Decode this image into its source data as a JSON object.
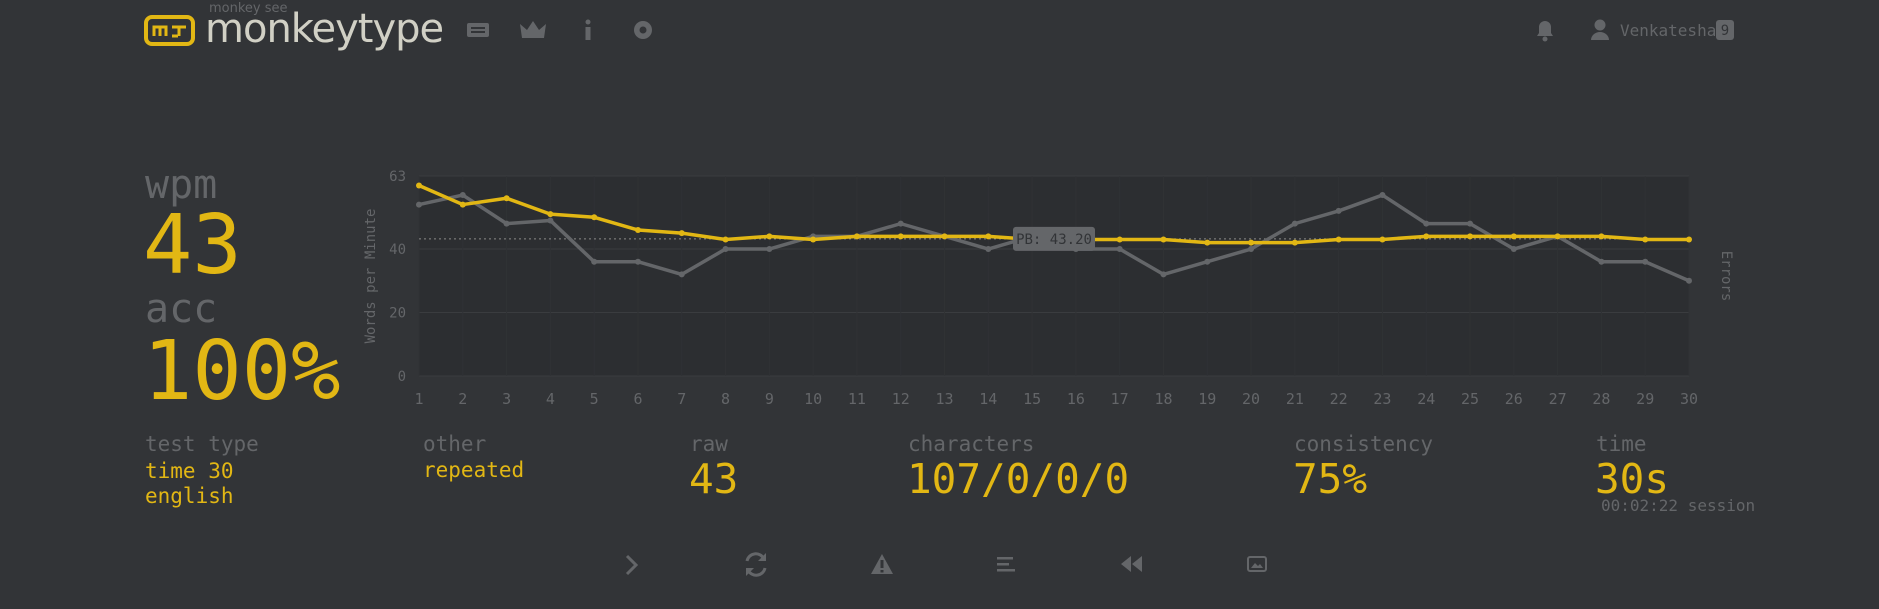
{
  "header": {
    "logo_subtitle": "monkey see",
    "logo_title": "monkeytype",
    "username": "Venkatesha",
    "badge": "9"
  },
  "stats": {
    "wpm": {
      "label": "wpm",
      "value": "43"
    },
    "acc": {
      "label": "acc",
      "value": "100%"
    },
    "test_type": {
      "label": "test type",
      "lines": [
        "time 30",
        "english"
      ]
    },
    "other": {
      "label": "other",
      "value": "repeated"
    },
    "raw": {
      "label": "raw",
      "value": "43"
    },
    "characters": {
      "label": "characters",
      "value": "107/0/0/0"
    },
    "consistency": {
      "label": "consistency",
      "value": "75%"
    },
    "time": {
      "label": "time",
      "value": "30s",
      "session": "00:02:22 session"
    }
  },
  "chart_data": {
    "type": "line",
    "y_label": "Words per Minute",
    "y2_label": "Errors",
    "x": [
      1,
      2,
      3,
      4,
      5,
      6,
      7,
      8,
      9,
      10,
      11,
      12,
      13,
      14,
      15,
      16,
      17,
      18,
      19,
      20,
      21,
      22,
      23,
      24,
      25,
      26,
      27,
      28,
      29,
      30
    ],
    "xlim": [
      1,
      30
    ],
    "ylim": [
      0,
      63
    ],
    "yticks": [
      0,
      20,
      40,
      63
    ],
    "grid": true,
    "annotation": {
      "value": 43.2,
      "label": "PB: 43.20"
    },
    "series": [
      {
        "color": "#646669",
        "values": [
          54,
          57,
          48,
          49,
          36,
          36,
          32,
          40,
          40,
          44,
          44,
          48,
          44,
          40,
          44,
          40,
          40,
          32,
          36,
          40,
          48,
          52,
          57,
          48,
          48,
          40,
          44,
          36,
          36,
          30
        ]
      },
      {
        "color": "#e2b714",
        "values": [
          60,
          54,
          56,
          51,
          50,
          46,
          45,
          43,
          44,
          43,
          44,
          44,
          44,
          44,
          43,
          43,
          43,
          43,
          42,
          42,
          42,
          43,
          43,
          44,
          44,
          44,
          44,
          44,
          43,
          43
        ]
      }
    ]
  }
}
